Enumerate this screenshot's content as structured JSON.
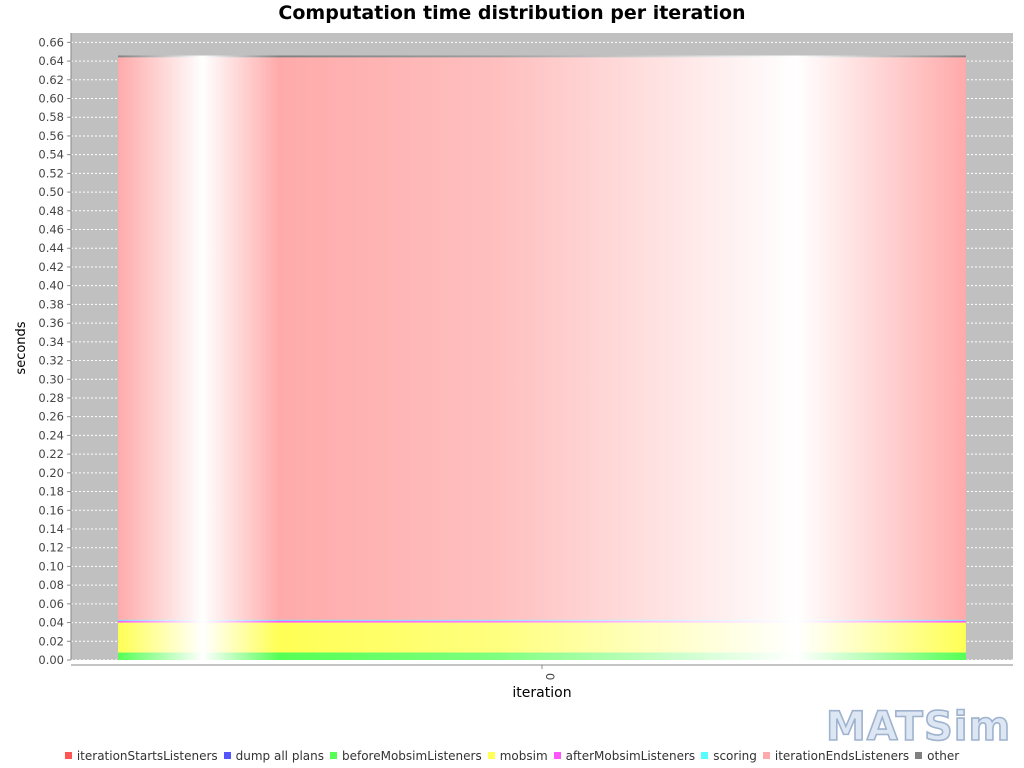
{
  "chart_data": {
    "type": "bar",
    "stacked": true,
    "title": "Computation time distribution per iteration",
    "xlabel": "iteration",
    "ylabel": "seconds",
    "categories": [
      "0"
    ],
    "ylim": [
      0,
      0.67
    ],
    "yticks": [
      "0.00",
      "0.02",
      "0.04",
      "0.06",
      "0.08",
      "0.10",
      "0.12",
      "0.14",
      "0.16",
      "0.18",
      "0.20",
      "0.22",
      "0.24",
      "0.26",
      "0.28",
      "0.30",
      "0.32",
      "0.34",
      "0.36",
      "0.38",
      "0.40",
      "0.42",
      "0.44",
      "0.46",
      "0.48",
      "0.50",
      "0.52",
      "0.54",
      "0.56",
      "0.58",
      "0.60",
      "0.62",
      "0.64",
      "0.66"
    ],
    "grid": true,
    "legend_position": "bottom",
    "series": [
      {
        "name": "iterationStartsListeners",
        "color": "#ff5555",
        "values": [
          0.0
        ]
      },
      {
        "name": "dump all plans",
        "color": "#5555ff",
        "values": [
          0.0
        ]
      },
      {
        "name": "beforeMobsimListeners",
        "color": "#55ff55",
        "values": [
          0.008
        ]
      },
      {
        "name": "mobsim",
        "color": "#ffff55",
        "values": [
          0.032
        ]
      },
      {
        "name": "afterMobsimListeners",
        "color": "#ff55ff",
        "values": [
          0.002
        ]
      },
      {
        "name": "scoring",
        "color": "#55ffff",
        "values": [
          0.001
        ]
      },
      {
        "name": "iterationEndsListeners",
        "color": "#ffaaaa",
        "values": [
          0.601
        ]
      },
      {
        "name": "other",
        "color": "#808080",
        "values": [
          0.002
        ]
      }
    ]
  },
  "logo_text": "MATSim"
}
